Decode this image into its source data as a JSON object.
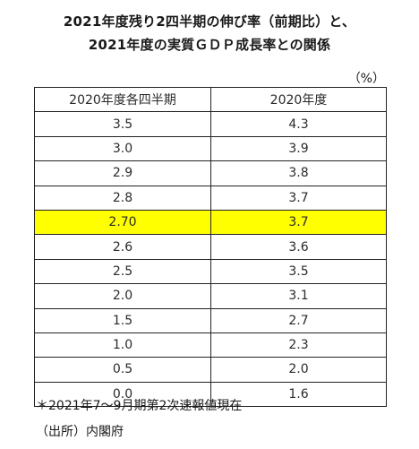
{
  "title": {
    "line1": "2021年度残り2四半期の伸び率（前期比）と、",
    "line2": "2021年度の実質ＧＤＰ成長率との関係"
  },
  "unit": "（%）",
  "table": {
    "headers": [
      "2020年度各四半期",
      "2020年度"
    ],
    "rows": [
      [
        "3.5",
        "4.3"
      ],
      [
        "3.0",
        "3.9"
      ],
      [
        "2.9",
        "3.8"
      ],
      [
        "2.8",
        "3.7"
      ],
      [
        "2.70",
        "3.7"
      ],
      [
        "2.6",
        "3.6"
      ],
      [
        "2.5",
        "3.5"
      ],
      [
        "2.0",
        "3.1"
      ],
      [
        "1.5",
        "2.7"
      ],
      [
        "1.0",
        "2.3"
      ],
      [
        "0.5",
        "2.0"
      ],
      [
        "0.0",
        "1.6"
      ]
    ],
    "highlight_color": "#ffff00"
  },
  "notes": {
    "note": "＊2021年7～9月期第2次速報値現在",
    "source": "（出所）内閣府"
  }
}
